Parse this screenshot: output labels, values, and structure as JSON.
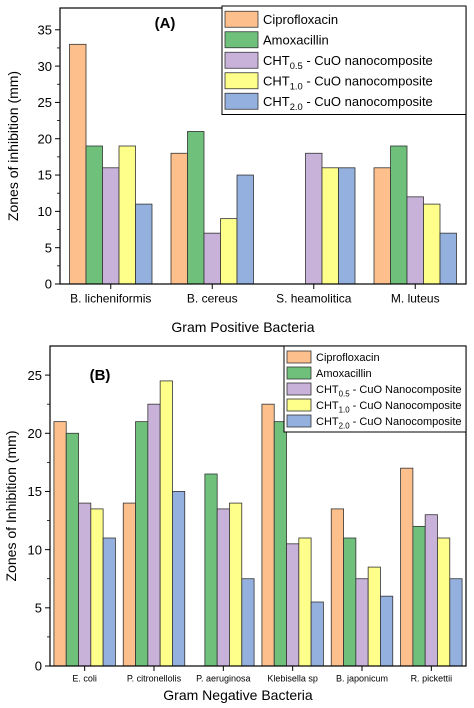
{
  "series_colors": [
    "#fdc08d",
    "#6ec07a",
    "#c9b2da",
    "#fefe8a",
    "#94b0de"
  ],
  "chart_data": [
    {
      "type": "bar",
      "panel_label": "(A)",
      "xlabel": "Gram Positive Bacteria",
      "ylabel": "Zones of inhibition (mm)",
      "ylim": [
        0,
        38
      ],
      "yticks": [
        0,
        5,
        10,
        15,
        20,
        25,
        30,
        35
      ],
      "categories": [
        "B. licheniformis",
        "B. cereus",
        "S. heamolitica",
        "M. luteus"
      ],
      "legend_position": "top-right",
      "series": [
        {
          "name": "Ciprofloxacin",
          "name_parts": [
            "Ciprofloxacin"
          ],
          "values": [
            33,
            18,
            0,
            16
          ]
        },
        {
          "name": "Amoxacillin",
          "name_parts": [
            "Amoxacillin"
          ],
          "values": [
            19,
            21,
            0,
            19
          ]
        },
        {
          "name": "CHT0.5 - CuO nanocomposite",
          "name_parts": [
            "CHT",
            "0.5",
            " - CuO nanocomposite"
          ],
          "values": [
            16,
            7,
            18,
            12
          ]
        },
        {
          "name": "CHT1.0 - CuO nanocomposite",
          "name_parts": [
            "CHT",
            "1.0",
            " - CuO nanocomposite"
          ],
          "values": [
            19,
            9,
            16,
            11
          ]
        },
        {
          "name": "CHT2.0 - CuO nanocomposite",
          "name_parts": [
            "CHT",
            "2.0",
            " - CuO nanocomposite"
          ],
          "values": [
            11,
            15,
            16,
            7
          ]
        }
      ]
    },
    {
      "type": "bar",
      "panel_label": "(B)",
      "xlabel": "Gram Negative Bacteria",
      "ylabel": "Zones of Inhibition (mm)",
      "ylim": [
        0,
        27.5
      ],
      "yticks": [
        0,
        5,
        10,
        15,
        20,
        25
      ],
      "categories": [
        "E. coli",
        "P. citronellolis",
        "P. aeruginosa",
        "Klebisella sp",
        "B. japonicum",
        "R. pickettii"
      ],
      "legend_position": "top-right",
      "series": [
        {
          "name": "Ciprofloxacin",
          "name_parts": [
            "Ciprofloxacin"
          ],
          "values": [
            21,
            14,
            0,
            22.5,
            13.5,
            17
          ]
        },
        {
          "name": "Amoxacillin",
          "name_parts": [
            "Amoxacillin"
          ],
          "values": [
            20,
            21,
            16.5,
            21,
            11,
            12
          ]
        },
        {
          "name": "CHT0.5 - CuO Nanocomposite",
          "name_parts": [
            "CHT",
            "0.5",
            " - CuO Nanocomposite"
          ],
          "values": [
            14,
            22.5,
            13.5,
            10.5,
            7.5,
            13
          ]
        },
        {
          "name": "CHT1.0 - CuO Nanocomposite",
          "name_parts": [
            "CHT",
            "1.0",
            " - CuO Nanocomposite"
          ],
          "values": [
            13.5,
            24.5,
            14,
            11,
            8.5,
            11
          ]
        },
        {
          "name": "CHT2.0 - CuO Nanocomposite",
          "name_parts": [
            "CHT",
            "2.0",
            " - CuO Nanocomposite"
          ],
          "values": [
            11,
            15,
            7.5,
            5.5,
            6,
            7.5
          ]
        }
      ]
    }
  ]
}
